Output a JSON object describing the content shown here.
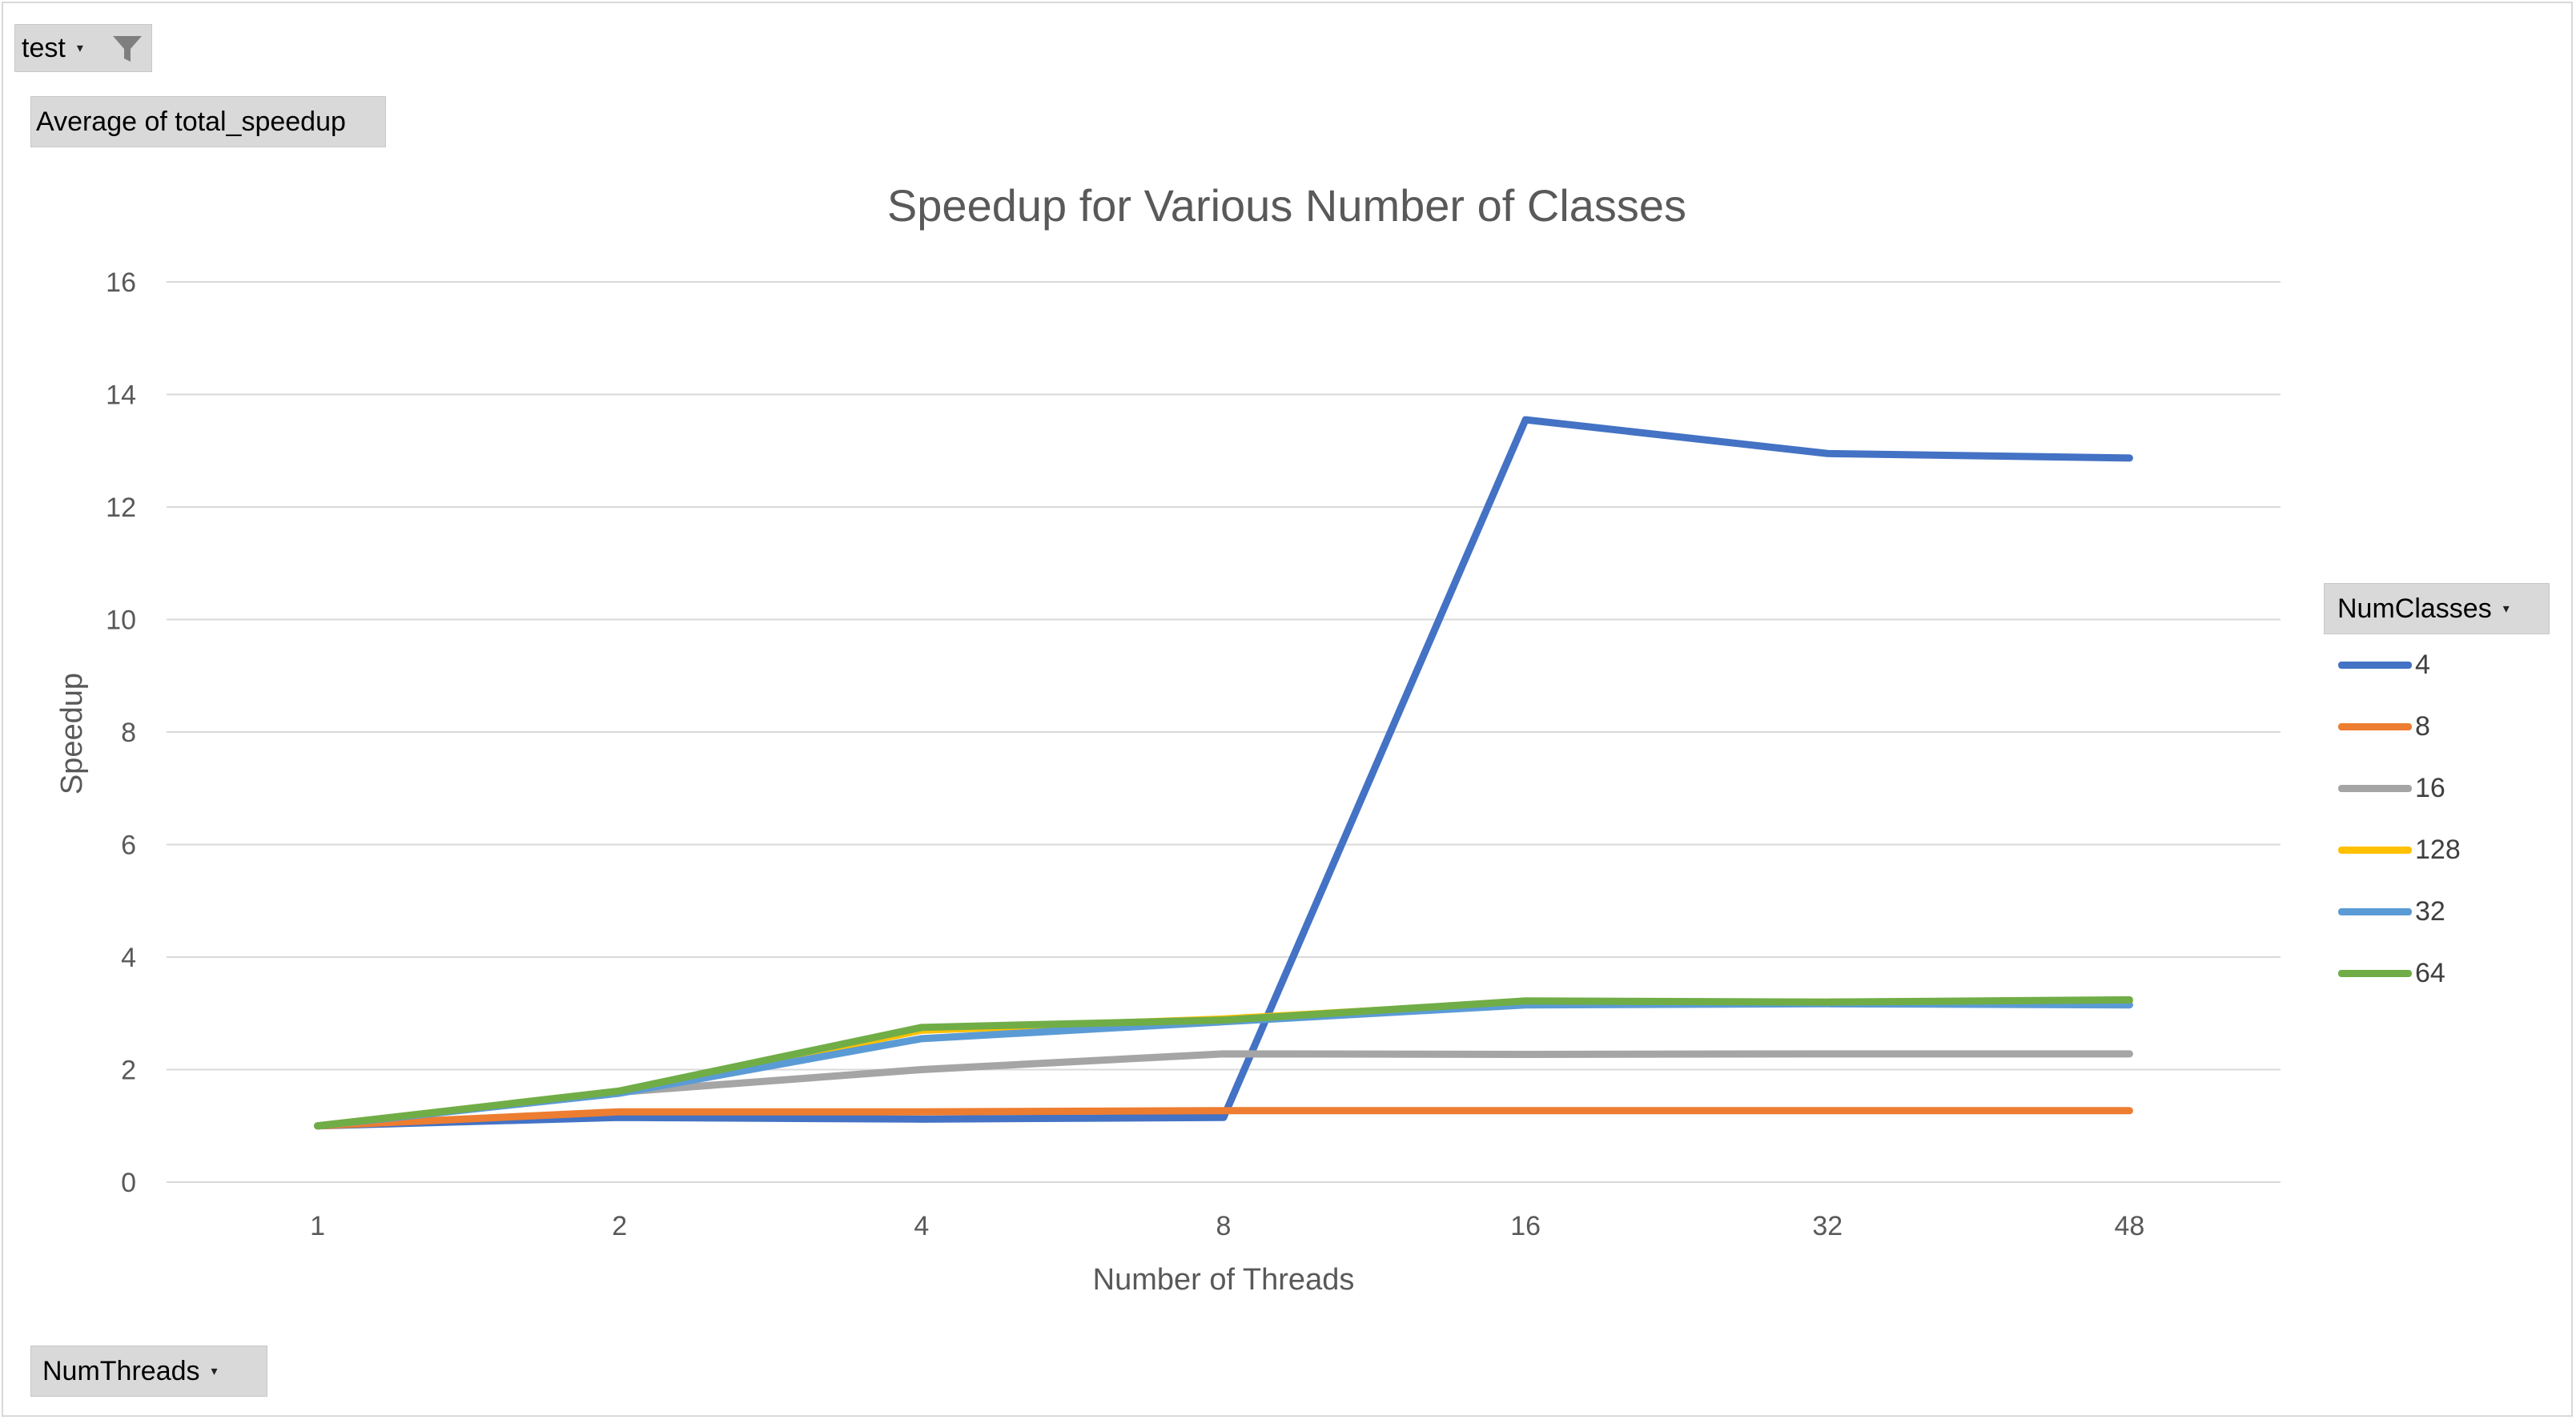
{
  "pivot": {
    "filter_label": "test",
    "value_field_label": "Average of total_speedup",
    "axis_field_label": "NumThreads",
    "legend_field_label": "NumClasses"
  },
  "icons": {
    "filter": "filter-funnel-icon",
    "dropdown": "dropdown-arrow-icon"
  },
  "chart_data": {
    "type": "line",
    "title": "Speedup for Various Number of Classes",
    "xlabel": "Number of Threads",
    "ylabel": "Speedup",
    "categories": [
      "1",
      "2",
      "4",
      "8",
      "16",
      "32",
      "48"
    ],
    "ylim": [
      0,
      16
    ],
    "yticks": [
      "0",
      "2",
      "4",
      "6",
      "8",
      "10",
      "12",
      "14",
      "16"
    ],
    "grid": true,
    "legend_position": "right",
    "series": [
      {
        "name": "4",
        "color": "#4472C4",
        "values": [
          1.0,
          1.15,
          1.12,
          1.15,
          13.55,
          12.95,
          12.87
        ]
      },
      {
        "name": "8",
        "color": "#ED7D31",
        "values": [
          1.0,
          1.25,
          1.25,
          1.27,
          1.27,
          1.27,
          1.27
        ]
      },
      {
        "name": "16",
        "color": "#A5A5A5",
        "values": [
          1.0,
          1.6,
          2.0,
          2.28,
          2.27,
          2.28,
          2.28
        ]
      },
      {
        "name": "128",
        "color": "#FFC000",
        "values": [
          1.0,
          1.6,
          2.7,
          2.9,
          3.2,
          3.2,
          3.22
        ]
      },
      {
        "name": "32",
        "color": "#5B9BD5",
        "values": [
          1.0,
          1.58,
          2.55,
          2.85,
          3.15,
          3.17,
          3.15
        ]
      },
      {
        "name": "64",
        "color": "#70AD47",
        "values": [
          1.0,
          1.62,
          2.75,
          2.88,
          3.22,
          3.2,
          3.24
        ]
      }
    ]
  }
}
